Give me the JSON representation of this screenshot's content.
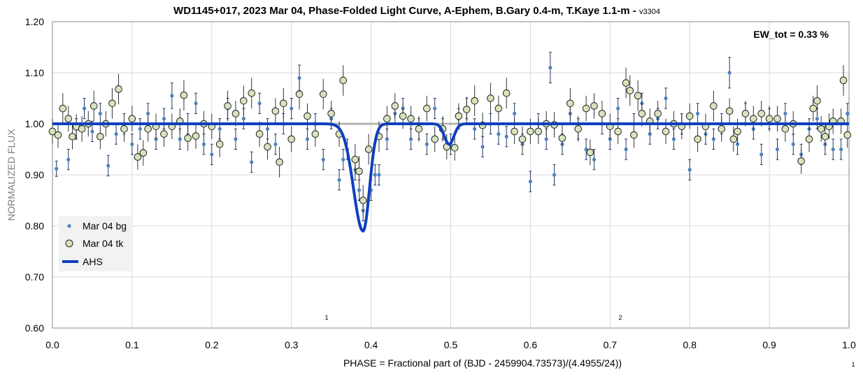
{
  "chart_data": {
    "type": "scatter",
    "title": "WD1145+017, 2023 Mar 04, Phase-Folded Light Curve, A-Ephem, B.Gary 0.4-m, T.Kaye 1.1-m - ",
    "title_version": "v3304",
    "xlabel": "PHASE = Fractional part of (BJD - 2459904.73573)/(4.4955/24))",
    "ylabel": "NORMALIZED FLUX",
    "xlim": [
      0.0,
      1.0
    ],
    "ylim": [
      0.6,
      1.2
    ],
    "x_ticks": [
      "0.0",
      "0.1",
      "0.2",
      "0.3",
      "0.4",
      "0.5",
      "0.6",
      "0.7",
      "0.8",
      "0.9",
      "1.0"
    ],
    "y_ticks": [
      "0.60",
      "0.70",
      "0.80",
      "0.90",
      "1.00",
      "1.10",
      "1.20"
    ],
    "grid": true,
    "legend_position": "bottom-left",
    "annotation": "EW_tot = 0.33 %",
    "markers": [
      {
        "label": "1",
        "x": 0.345
      },
      {
        "label": "2",
        "x": 0.71
      }
    ],
    "corner_note": "1",
    "reference_level": 1.0,
    "series": [
      {
        "name": "Mar 04 bg",
        "style": "small-dot",
        "color": "#4f81bd",
        "points": [
          [
            0.005,
            0.912,
            0.015
          ],
          [
            0.02,
            0.93,
            0.02
          ],
          [
            0.03,
            0.99,
            0.02
          ],
          [
            0.04,
            1.03,
            0.02
          ],
          [
            0.05,
            0.985,
            0.02
          ],
          [
            0.06,
            1.02,
            0.02
          ],
          [
            0.07,
            0.918,
            0.02
          ],
          [
            0.08,
            0.98,
            0.02
          ],
          [
            0.09,
            1.0,
            0.02
          ],
          [
            0.1,
            0.96,
            0.02
          ],
          [
            0.11,
            0.99,
            0.02
          ],
          [
            0.12,
            1.02,
            0.02
          ],
          [
            0.13,
            0.97,
            0.02
          ],
          [
            0.14,
            1.01,
            0.02
          ],
          [
            0.15,
            1.055,
            0.025
          ],
          [
            0.16,
            0.97,
            0.02
          ],
          [
            0.17,
            1.0,
            0.02
          ],
          [
            0.18,
            1.04,
            0.02
          ],
          [
            0.19,
            0.96,
            0.02
          ],
          [
            0.2,
            0.94,
            0.02
          ],
          [
            0.21,
            0.99,
            0.02
          ],
          [
            0.22,
            1.03,
            0.02
          ],
          [
            0.23,
            0.97,
            0.02
          ],
          [
            0.24,
            1.01,
            0.02
          ],
          [
            0.25,
            0.925,
            0.02
          ],
          [
            0.26,
            1.04,
            0.02
          ],
          [
            0.27,
            0.99,
            0.02
          ],
          [
            0.28,
            0.96,
            0.02
          ],
          [
            0.29,
            1.0,
            0.02
          ],
          [
            0.3,
            1.03,
            0.02
          ],
          [
            0.31,
            1.09,
            0.025
          ],
          [
            0.32,
            0.97,
            0.02
          ],
          [
            0.33,
            1.0,
            0.02
          ],
          [
            0.34,
            0.93,
            0.02
          ],
          [
            0.35,
            1.01,
            0.02
          ],
          [
            0.36,
            0.89,
            0.02
          ],
          [
            0.365,
            0.93,
            0.02
          ],
          [
            0.37,
            0.95,
            0.02
          ],
          [
            0.38,
            0.91,
            0.02
          ],
          [
            0.385,
            0.87,
            0.02
          ],
          [
            0.39,
            0.83,
            0.02
          ],
          [
            0.4,
            0.87,
            0.02
          ],
          [
            0.405,
            0.9,
            0.02
          ],
          [
            0.41,
            0.9,
            0.02
          ],
          [
            0.42,
            0.97,
            0.02
          ],
          [
            0.43,
            1.02,
            0.02
          ],
          [
            0.44,
            1.03,
            0.02
          ],
          [
            0.45,
            0.97,
            0.02
          ],
          [
            0.46,
            0.99,
            0.02
          ],
          [
            0.47,
            0.96,
            0.02
          ],
          [
            0.48,
            1.03,
            0.02
          ],
          [
            0.49,
            0.99,
            0.02
          ],
          [
            0.5,
            0.96,
            0.02
          ],
          [
            0.51,
            1.01,
            0.02
          ],
          [
            0.52,
            1.03,
            0.02
          ],
          [
            0.53,
            0.99,
            0.02
          ],
          [
            0.54,
            0.955,
            0.02
          ],
          [
            0.55,
            1.0,
            0.02
          ],
          [
            0.56,
            0.98,
            0.02
          ],
          [
            0.57,
            0.975,
            0.02
          ],
          [
            0.58,
            1.02,
            0.02
          ],
          [
            0.59,
            0.96,
            0.02
          ],
          [
            0.6,
            0.887,
            0.02
          ],
          [
            0.61,
            1.0,
            0.02
          ],
          [
            0.62,
            0.97,
            0.02
          ],
          [
            0.625,
            1.11,
            0.03
          ],
          [
            0.63,
            0.9,
            0.02
          ],
          [
            0.64,
            0.96,
            0.02
          ],
          [
            0.65,
            1.02,
            0.02
          ],
          [
            0.66,
            0.99,
            0.02
          ],
          [
            0.67,
            0.95,
            0.02
          ],
          [
            0.68,
            0.93,
            0.02
          ],
          [
            0.69,
            1.0,
            0.02
          ],
          [
            0.7,
            0.97,
            0.02
          ],
          [
            0.71,
            1.03,
            0.02
          ],
          [
            0.72,
            0.95,
            0.02
          ],
          [
            0.73,
            1.0,
            0.02
          ],
          [
            0.74,
            1.04,
            0.02
          ],
          [
            0.75,
            0.98,
            0.02
          ],
          [
            0.76,
            1.01,
            0.02
          ],
          [
            0.77,
            1.05,
            0.02
          ],
          [
            0.78,
            0.97,
            0.02
          ],
          [
            0.79,
            1.0,
            0.02
          ],
          [
            0.8,
            0.91,
            0.02
          ],
          [
            0.81,
            1.02,
            0.02
          ],
          [
            0.82,
            0.98,
            0.02
          ],
          [
            0.83,
            0.97,
            0.02
          ],
          [
            0.84,
            1.0,
            0.02
          ],
          [
            0.85,
            1.1,
            0.03
          ],
          [
            0.86,
            0.96,
            0.02
          ],
          [
            0.87,
            1.02,
            0.02
          ],
          [
            0.88,
            0.99,
            0.02
          ],
          [
            0.89,
            0.94,
            0.02
          ],
          [
            0.9,
            1.01,
            0.02
          ],
          [
            0.91,
            0.95,
            0.02
          ],
          [
            0.92,
            1.02,
            0.02
          ],
          [
            0.93,
            0.96,
            0.02
          ],
          [
            0.94,
            0.94,
            0.02
          ],
          [
            0.95,
            0.99,
            0.02
          ],
          [
            0.96,
            1.01,
            0.02
          ],
          [
            0.97,
            0.96,
            0.02
          ],
          [
            0.98,
            0.95,
            0.02
          ],
          [
            0.99,
            0.95,
            0.02
          ],
          [
            0.998,
            1.02,
            0.02
          ]
        ]
      },
      {
        "name": "Mar 04 tk",
        "style": "large-circle",
        "color": "#d6e3bc",
        "points": [
          [
            0.0,
            0.985,
            0.025
          ],
          [
            0.007,
            0.978,
            0.025
          ],
          [
            0.013,
            1.03,
            0.03
          ],
          [
            0.02,
            1.01,
            0.025
          ],
          [
            0.025,
            0.975,
            0.025
          ],
          [
            0.03,
            0.994,
            0.025
          ],
          [
            0.037,
            0.99,
            0.025
          ],
          [
            0.045,
            1.0,
            0.025
          ],
          [
            0.052,
            1.035,
            0.03
          ],
          [
            0.06,
            0.975,
            0.025
          ],
          [
            0.067,
            1.0,
            0.025
          ],
          [
            0.075,
            1.04,
            0.03
          ],
          [
            0.083,
            1.068,
            0.03
          ],
          [
            0.09,
            0.99,
            0.025
          ],
          [
            0.1,
            1.01,
            0.025
          ],
          [
            0.107,
            0.935,
            0.025
          ],
          [
            0.114,
            0.943,
            0.025
          ],
          [
            0.12,
            0.99,
            0.025
          ],
          [
            0.13,
            0.995,
            0.025
          ],
          [
            0.14,
            0.98,
            0.025
          ],
          [
            0.15,
            0.995,
            0.025
          ],
          [
            0.16,
            1.005,
            0.025
          ],
          [
            0.165,
            1.056,
            0.03
          ],
          [
            0.17,
            0.972,
            0.025
          ],
          [
            0.18,
            0.976,
            0.025
          ],
          [
            0.19,
            1.0,
            0.025
          ],
          [
            0.2,
            0.995,
            0.025
          ],
          [
            0.21,
            0.96,
            0.025
          ],
          [
            0.22,
            1.035,
            0.03
          ],
          [
            0.23,
            1.02,
            0.025
          ],
          [
            0.24,
            1.045,
            0.03
          ],
          [
            0.25,
            1.06,
            0.03
          ],
          [
            0.26,
            0.98,
            0.025
          ],
          [
            0.27,
            0.955,
            0.025
          ],
          [
            0.28,
            1.025,
            0.025
          ],
          [
            0.285,
            0.925,
            0.03
          ],
          [
            0.29,
            1.04,
            0.03
          ],
          [
            0.3,
            0.97,
            0.025
          ],
          [
            0.31,
            1.058,
            0.03
          ],
          [
            0.32,
            1.015,
            0.025
          ],
          [
            0.33,
            0.98,
            0.025
          ],
          [
            0.34,
            1.058,
            0.03
          ],
          [
            0.35,
            1.02,
            0.025
          ],
          [
            0.36,
            0.98,
            0.025
          ],
          [
            0.365,
            1.085,
            0.03
          ],
          [
            0.38,
            0.93,
            0.03
          ],
          [
            0.385,
            0.907,
            0.03
          ],
          [
            0.39,
            0.85,
            0.03
          ],
          [
            0.397,
            0.95,
            0.03
          ],
          [
            0.41,
            0.975,
            0.03
          ],
          [
            0.42,
            1.01,
            0.025
          ],
          [
            0.43,
            1.035,
            0.025
          ],
          [
            0.44,
            1.015,
            0.025
          ],
          [
            0.45,
            1.01,
            0.025
          ],
          [
            0.46,
            0.99,
            0.025
          ],
          [
            0.47,
            1.03,
            0.025
          ],
          [
            0.48,
            0.97,
            0.025
          ],
          [
            0.49,
            0.99,
            0.025
          ],
          [
            0.495,
            0.955,
            0.025
          ],
          [
            0.505,
            0.953,
            0.025
          ],
          [
            0.51,
            1.015,
            0.025
          ],
          [
            0.52,
            1.028,
            0.025
          ],
          [
            0.53,
            1.045,
            0.03
          ],
          [
            0.54,
            0.997,
            0.025
          ],
          [
            0.55,
            1.05,
            0.03
          ],
          [
            0.56,
            1.03,
            0.025
          ],
          [
            0.57,
            1.06,
            0.03
          ],
          [
            0.58,
            0.985,
            0.025
          ],
          [
            0.59,
            0.97,
            0.025
          ],
          [
            0.6,
            0.985,
            0.025
          ],
          [
            0.61,
            0.985,
            0.025
          ],
          [
            0.62,
            1.0,
            0.025
          ],
          [
            0.63,
            0.998,
            0.025
          ],
          [
            0.64,
            0.972,
            0.025
          ],
          [
            0.65,
            1.04,
            0.03
          ],
          [
            0.66,
            0.99,
            0.025
          ],
          [
            0.67,
            1.03,
            0.025
          ],
          [
            0.675,
            0.944,
            0.025
          ],
          [
            0.68,
            1.035,
            0.025
          ],
          [
            0.69,
            1.02,
            0.025
          ],
          [
            0.7,
            0.995,
            0.025
          ],
          [
            0.71,
            0.985,
            0.025
          ],
          [
            0.72,
            1.08,
            0.03
          ],
          [
            0.725,
            1.065,
            0.03
          ],
          [
            0.73,
            0.978,
            0.025
          ],
          [
            0.735,
            1.055,
            0.03
          ],
          [
            0.74,
            1.02,
            0.025
          ],
          [
            0.75,
            1.005,
            0.025
          ],
          [
            0.76,
            1.02,
            0.025
          ],
          [
            0.77,
            0.985,
            0.025
          ],
          [
            0.78,
            1.0,
            0.025
          ],
          [
            0.79,
            0.995,
            0.025
          ],
          [
            0.8,
            1.015,
            0.025
          ],
          [
            0.81,
            0.97,
            0.025
          ],
          [
            0.82,
            0.995,
            0.025
          ],
          [
            0.83,
            1.035,
            0.03
          ],
          [
            0.84,
            0.99,
            0.025
          ],
          [
            0.85,
            1.025,
            0.025
          ],
          [
            0.855,
            0.97,
            0.025
          ],
          [
            0.86,
            0.985,
            0.025
          ],
          [
            0.87,
            1.02,
            0.025
          ],
          [
            0.88,
            1.01,
            0.025
          ],
          [
            0.89,
            1.02,
            0.025
          ],
          [
            0.9,
            1.01,
            0.025
          ],
          [
            0.91,
            1.01,
            0.025
          ],
          [
            0.92,
            0.99,
            0.025
          ],
          [
            0.93,
            1.0,
            0.025
          ],
          [
            0.94,
            0.927,
            0.025
          ],
          [
            0.95,
            0.97,
            0.025
          ],
          [
            0.955,
            1.03,
            0.025
          ],
          [
            0.96,
            1.045,
            0.03
          ],
          [
            0.965,
            0.99,
            0.025
          ],
          [
            0.97,
            0.975,
            0.025
          ],
          [
            0.975,
            0.995,
            0.025
          ],
          [
            0.98,
            1.005,
            0.025
          ],
          [
            0.99,
            1.005,
            0.025
          ],
          [
            0.993,
            1.085,
            0.03
          ],
          [
            0.998,
            0.978,
            0.025
          ]
        ]
      },
      {
        "name": "AHS",
        "style": "line",
        "color": "#0f3fbf",
        "dips": [
          {
            "center": 0.39,
            "depth": 0.21,
            "width_left": 0.012,
            "width_right": 0.008
          },
          {
            "center": 0.498,
            "depth": 0.04,
            "width_left": 0.006,
            "width_right": 0.006
          }
        ]
      }
    ]
  }
}
